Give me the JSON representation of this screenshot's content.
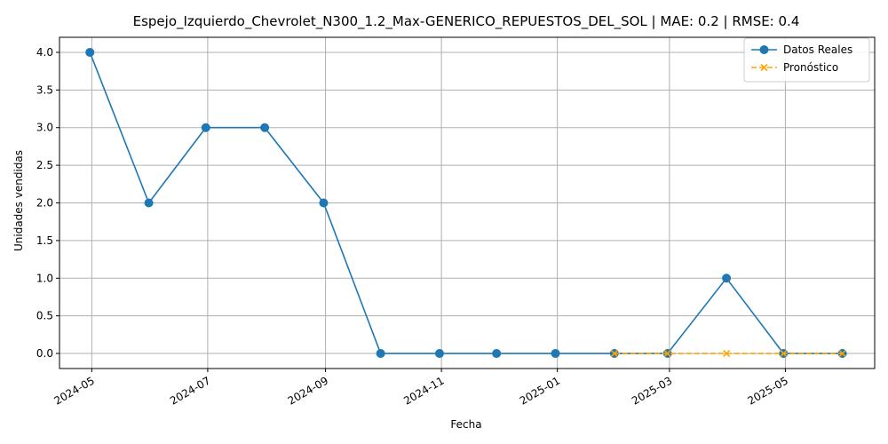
{
  "chart_data": {
    "type": "line",
    "title": "Espejo_Izquierdo_Chevrolet_N300_1.2_Max-GENERICO_REPUESTOS_DEL_SOL | MAE: 0.2 | RMSE: 0.4",
    "xlabel": "Fecha",
    "ylabel": "Unidades vendidas",
    "grid": true,
    "legend_position": "top-right",
    "xlim": [
      "2024-04-14",
      "2025-06-17"
    ],
    "ylim": [
      -0.2,
      4.2
    ],
    "x_ticks": [
      "2024-05",
      "2024-07",
      "2024-09",
      "2024-11",
      "2025-01",
      "2025-03",
      "2025-05"
    ],
    "y_ticks": [
      "0.0",
      "0.5",
      "1.0",
      "1.5",
      "2.0",
      "2.5",
      "3.0",
      "3.5",
      "4.0"
    ],
    "series": [
      {
        "name": "Datos Reales",
        "color": "#1f77b4",
        "marker": "circle",
        "line": "solid",
        "x": [
          "2024-04-30",
          "2024-05-31",
          "2024-06-30",
          "2024-07-31",
          "2024-08-31",
          "2024-09-30",
          "2024-10-31",
          "2024-11-30",
          "2024-12-31",
          "2025-01-31",
          "2025-02-28",
          "2025-03-31",
          "2025-04-30",
          "2025-05-31"
        ],
        "values": [
          4,
          2,
          3,
          3,
          2,
          0,
          0,
          0,
          0,
          0,
          0,
          1,
          0,
          0
        ]
      },
      {
        "name": "Pronóstico",
        "color": "#ffa500",
        "marker": "x",
        "line": "dashed",
        "x": [
          "2025-01-31",
          "2025-02-28",
          "2025-03-31",
          "2025-04-30",
          "2025-05-31"
        ],
        "values": [
          0,
          0,
          0,
          0,
          0
        ]
      }
    ]
  }
}
